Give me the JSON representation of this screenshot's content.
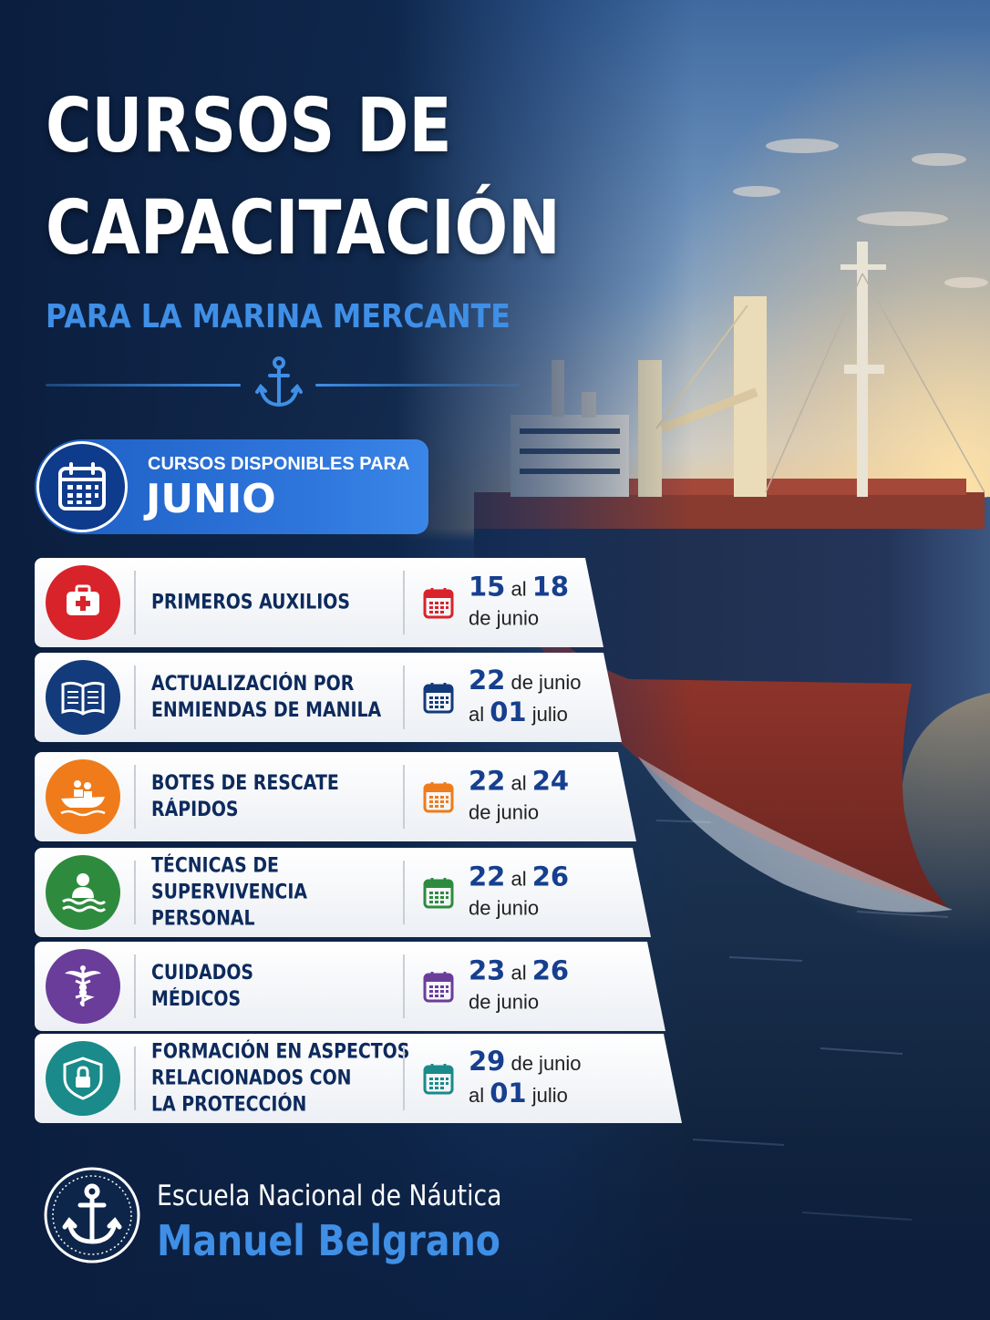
{
  "header": {
    "title_line1": "CURSOS DE",
    "title_line2": "CAPACITACIÓN",
    "subtitle": "PARA LA MARINA MERCANTE",
    "divider_icon": "anchor-icon"
  },
  "banner": {
    "pre_label": "CURSOS DISPONIBLES PARA",
    "month": "JUNIO",
    "icon": "calendar-icon"
  },
  "courses": [
    {
      "name_lines": [
        "PRIMEROS AUXILIOS"
      ],
      "icon": "first-aid-kit-icon",
      "color": "#d8232a",
      "date_start": "15",
      "date_start_suffix": "al",
      "date_end": "18",
      "date_end_suffix": "",
      "line2_prefix": "",
      "line2": "de junio"
    },
    {
      "name_lines": [
        "ACTUALIZACIÓN POR",
        "ENMIENDAS DE MANILA"
      ],
      "icon": "open-book-icon",
      "color": "#133a7a",
      "date_start": "22",
      "date_start_suffix": "de junio",
      "date_end": "",
      "date_end_suffix": "",
      "line2_prefix": "al",
      "line2_bold": "01",
      "line2": "julio"
    },
    {
      "name_lines": [
        "BOTES DE RESCATE",
        "RÁPIDOS"
      ],
      "icon": "rescue-boat-icon",
      "color": "#ef7b1a",
      "date_start": "22",
      "date_start_suffix": "al",
      "date_end": "24",
      "date_end_suffix": "",
      "line2_prefix": "",
      "line2": "de junio"
    },
    {
      "name_lines": [
        "TÉCNICAS DE",
        "SUPERVIVENCIA",
        "PERSONAL"
      ],
      "icon": "survivor-in-water-icon",
      "color": "#2e8b3e",
      "date_start": "22",
      "date_start_suffix": "al",
      "date_end": "26",
      "date_end_suffix": "",
      "line2_prefix": "",
      "line2": "de junio"
    },
    {
      "name_lines": [
        "CUIDADOS",
        "MÉDICOS"
      ],
      "icon": "caduceus-icon",
      "color": "#6a3d9a",
      "date_start": "23",
      "date_start_suffix": "al",
      "date_end": "26",
      "date_end_suffix": "",
      "line2_prefix": "",
      "line2": "de junio"
    },
    {
      "name_lines": [
        "FORMACIÓN EN ASPECTOS",
        "RELACIONADOS CON",
        "LA PROTECCIÓN"
      ],
      "icon": "shield-lock-icon",
      "color": "#1a8a8a",
      "date_start": "29",
      "date_start_suffix": "de junio",
      "date_end": "",
      "date_end_suffix": "",
      "line2_prefix": "al",
      "line2_bold": "01",
      "line2": "julio"
    }
  ],
  "footer": {
    "logo_icon": "anchor-emblem-icon",
    "school_line1": "Escuela Nacional de Náutica",
    "school_line2": "Manuel Belgrano"
  },
  "colors": {
    "navy": "#0b1e3f",
    "accent_blue": "#3f8fe6",
    "banner_blue": "#2f76dc",
    "date_blue": "#163f8f"
  }
}
